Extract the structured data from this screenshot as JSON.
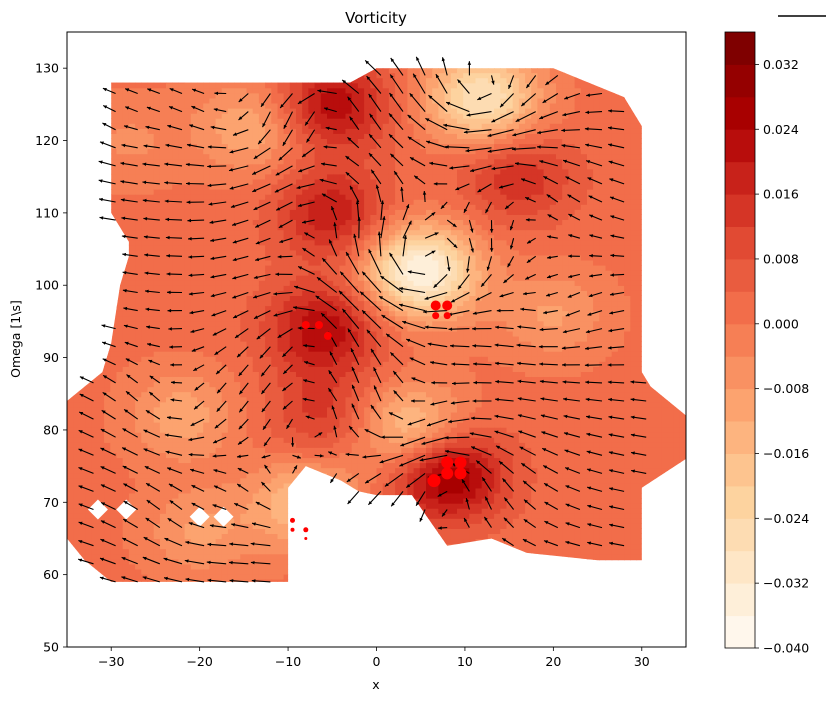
{
  "chart_data": {
    "type": "heatmap",
    "overlay": "quiver",
    "title": "Vorticity",
    "xlabel": "x",
    "ylabel": "Omega [1\\s]",
    "xlim": [
      -35,
      35
    ],
    "ylim": [
      50,
      135
    ],
    "xticks": [
      -30,
      -20,
      -10,
      0,
      10,
      20,
      30
    ],
    "yticks": [
      50,
      60,
      70,
      80,
      90,
      100,
      110,
      120,
      130
    ],
    "colormap": "OrRd",
    "colorbar": {
      "range": [
        -0.04,
        0.036
      ],
      "tick_values": [
        -0.04,
        -0.032,
        -0.024,
        -0.016,
        -0.008,
        0.0,
        0.008,
        0.016,
        0.024,
        0.032
      ],
      "tick_labels": [
        "−0.040",
        "−0.032",
        "−0.024",
        "−0.016",
        "−0.008",
        "0.000",
        "0.008",
        "0.016",
        "0.024",
        "0.032"
      ],
      "levels": 19,
      "colors": [
        "#fff7ec",
        "#feefd9",
        "#fee6c6",
        "#fddcb2",
        "#fdd39f",
        "#fdc48f",
        "#fdb47f",
        "#fca36f",
        "#f99162",
        "#f67f55",
        "#f26d4a",
        "#e95c3f",
        "#e14a33",
        "#d53526",
        "#c8221a",
        "#b80d0c",
        "#a80000",
        "#950000",
        "#7f0000"
      ]
    },
    "vortex_centers": [
      {
        "x": -6,
        "y": 94,
        "value": 0.022
      },
      {
        "x": -5,
        "y": 125,
        "value": 0.022
      },
      {
        "x": -5,
        "y": 110,
        "value": 0.018
      },
      {
        "x": -6,
        "y": 82,
        "value": 0.012
      },
      {
        "x": 8,
        "y": 74,
        "value": 0.03
      },
      {
        "x": 16,
        "y": 115,
        "value": 0.014
      },
      {
        "x": 5,
        "y": 102,
        "value": -0.038
      },
      {
        "x": 12,
        "y": 126,
        "value": -0.03
      },
      {
        "x": -8,
        "y": 70,
        "value": -0.018
      },
      {
        "x": 4,
        "y": 80,
        "value": -0.022
      },
      {
        "x": -22,
        "y": 82,
        "value": -0.012
      },
      {
        "x": -20,
        "y": 66,
        "value": -0.01
      },
      {
        "x": 20,
        "y": 96,
        "value": -0.01
      },
      {
        "x": -28,
        "y": 120,
        "value": -0.006
      },
      {
        "x": -14,
        "y": 122,
        "value": -0.014
      }
    ],
    "markers": {
      "color": "#ff0000",
      "points": [
        {
          "x": -8,
          "y": 94.5,
          "size": 8
        },
        {
          "x": -6.5,
          "y": 94.5,
          "size": 8
        },
        {
          "x": -5.5,
          "y": 93,
          "size": 8
        },
        {
          "x": 6.7,
          "y": 97.2,
          "size": 10
        },
        {
          "x": 8,
          "y": 97.2,
          "size": 10
        },
        {
          "x": 6.7,
          "y": 95.8,
          "size": 7
        },
        {
          "x": 8,
          "y": 95.8,
          "size": 7
        },
        {
          "x": 8,
          "y": 75.5,
          "size": 12
        },
        {
          "x": 9.5,
          "y": 75.5,
          "size": 12
        },
        {
          "x": 8,
          "y": 74,
          "size": 12
        },
        {
          "x": 9.5,
          "y": 74,
          "size": 12
        },
        {
          "x": 6.5,
          "y": 73,
          "size": 13
        },
        {
          "x": -9.5,
          "y": 67.5,
          "size": 5
        },
        {
          "x": -8,
          "y": 66.2,
          "size": 5
        },
        {
          "x": -9.5,
          "y": 66.2,
          "size": 4
        },
        {
          "x": -8,
          "y": 65,
          "size": 3
        }
      ]
    },
    "domain_boundary": [
      [
        -30,
        128
      ],
      [
        -3,
        128
      ],
      [
        0,
        130
      ],
      [
        20,
        130
      ],
      [
        28,
        126
      ],
      [
        30,
        122
      ],
      [
        30,
        88
      ],
      [
        31,
        86
      ],
      [
        35,
        82
      ],
      [
        35,
        76
      ],
      [
        30,
        72
      ],
      [
        30,
        62
      ],
      [
        25,
        62
      ],
      [
        17,
        63
      ],
      [
        13,
        65
      ],
      [
        8,
        64
      ],
      [
        4,
        71
      ],
      [
        0,
        71
      ],
      [
        -2,
        71.5
      ],
      [
        -4,
        73
      ],
      [
        -8,
        75
      ],
      [
        -10,
        72
      ],
      [
        -10,
        59
      ],
      [
        -30,
        59
      ],
      [
        -33,
        62
      ],
      [
        -35,
        65
      ],
      [
        -35,
        84
      ],
      [
        -31,
        88
      ],
      [
        -30,
        92
      ],
      [
        -29,
        100
      ],
      [
        -28,
        104
      ],
      [
        -28,
        106
      ],
      [
        -29,
        108
      ],
      [
        -30,
        110
      ],
      [
        -30,
        122
      ]
    ],
    "holes": [
      [
        -31.5,
        69
      ],
      [
        -28.3,
        69
      ],
      [
        -20,
        68
      ],
      [
        -17.3,
        68
      ]
    ],
    "quiver_grid": {
      "x_start": -32,
      "x_end": 32,
      "x_step": 2.5,
      "y_start": 59,
      "y_end": 130,
      "y_step": 2.5
    }
  }
}
